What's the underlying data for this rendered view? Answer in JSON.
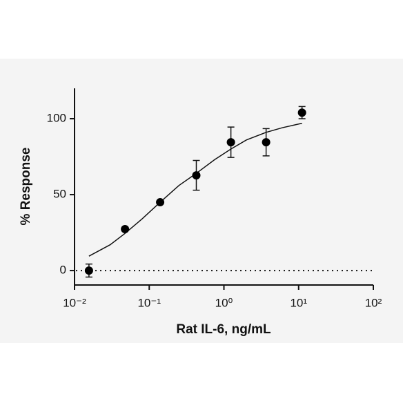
{
  "chart_data": {
    "type": "scatter",
    "x_label": "Rat IL-6, ng/mL",
    "y_label": "% Response",
    "x_scale": "log",
    "xlim": [
      0.01,
      100
    ],
    "xticks": [
      {
        "value": 0.01,
        "label": "10⁻²"
      },
      {
        "value": 0.1,
        "label": "10⁻¹"
      },
      {
        "value": 1,
        "label": "10⁰"
      },
      {
        "value": 10,
        "label": "10¹"
      },
      {
        "value": 100,
        "label": "10²"
      }
    ],
    "ylim": [
      -9.5,
      120
    ],
    "yticks": [
      0,
      50,
      100
    ],
    "reference_line": 0,
    "color": "#000000",
    "series": [
      {
        "x": [
          0.0156,
          0.0474,
          0.14,
          0.427,
          1.24,
          3.67,
          11.1
        ],
        "values": [
          0,
          27.3,
          45,
          62.7,
          84.5,
          84.5,
          104
        ],
        "errors": [
          4.3,
          0,
          0,
          9.8,
          10,
          9,
          4
        ]
      }
    ],
    "fit": {
      "x": [
        0.0156,
        0.03,
        0.0474,
        0.08,
        0.14,
        0.25,
        0.427,
        0.75,
        1.24,
        2,
        3.67,
        6,
        11.1
      ],
      "values": [
        9.5,
        17,
        24.5,
        34,
        45,
        56,
        64,
        73,
        80,
        86,
        91,
        94,
        97
      ]
    }
  }
}
